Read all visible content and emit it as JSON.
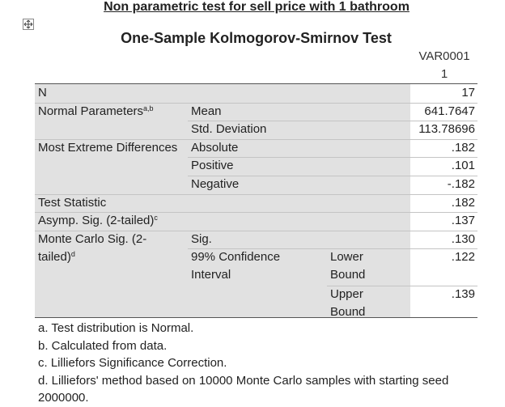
{
  "header": {
    "title": "Non parametric test for sell price with 1 bathroom"
  },
  "table": {
    "title": "One-Sample Kolmogorov-Smirnov Test",
    "column_header": "VAR00011",
    "rows": [
      {
        "label": "N",
        "value": "17"
      },
      {
        "label": "Normal Parameters",
        "note": "a,b",
        "sub": "Mean",
        "value": "641.7647"
      },
      {
        "sub": "Std. Deviation",
        "value": "113.78696"
      },
      {
        "label": "Most Extreme Differences",
        "sub": "Absolute",
        "value": ".182"
      },
      {
        "sub": "Positive",
        "value": ".101"
      },
      {
        "sub": "Negative",
        "value": "-.182"
      },
      {
        "label": "Test Statistic",
        "value": ".182"
      },
      {
        "label": "Asymp. Sig. (2-tailed)",
        "note": "c",
        "value": ".137"
      },
      {
        "label": "Monte Carlo Sig. (2-tailed)",
        "note": "d",
        "sub": "Sig.",
        "value": ".130"
      },
      {
        "sub": "99% Confidence Interval",
        "bound": "Lower Bound",
        "value": ".122"
      },
      {
        "bound": "Upper Bound",
        "value": ".139"
      }
    ],
    "footnotes": [
      "a. Test distribution is Normal.",
      "b. Calculated from data.",
      "c. Lilliefors Significance Correction.",
      "d. Lilliefors' method based on 10000 Monte Carlo samples with starting seed 2000000."
    ]
  }
}
